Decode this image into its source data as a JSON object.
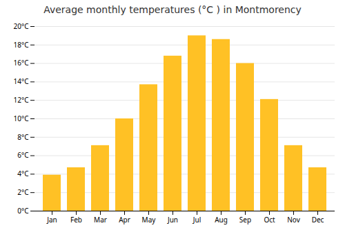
{
  "chart_data": {
    "type": "bar",
    "title": "Average monthly temperatures (°C ) in Montmorency",
    "categories": [
      "Jan",
      "Feb",
      "Mar",
      "Apr",
      "May",
      "Jun",
      "Jul",
      "Aug",
      "Sep",
      "Oct",
      "Nov",
      "Dec"
    ],
    "values": [
      3.9,
      4.7,
      7.1,
      10.0,
      13.7,
      16.8,
      19.0,
      18.6,
      16.0,
      12.1,
      7.1,
      4.7
    ],
    "color": "#FFC125",
    "ylim": [
      0,
      20
    ],
    "yticks": [
      {
        "value": 0,
        "label": "0°C"
      },
      {
        "value": 2,
        "label": "2°C"
      },
      {
        "value": 4,
        "label": "4°C"
      },
      {
        "value": 6,
        "label": "6°C"
      },
      {
        "value": 8,
        "label": "8°C"
      },
      {
        "value": 10,
        "label": "10°C"
      },
      {
        "value": 12,
        "label": "12°C"
      },
      {
        "value": 14,
        "label": "14°C"
      },
      {
        "value": 16,
        "label": "16°C"
      },
      {
        "value": 18,
        "label": "18°C"
      },
      {
        "value": 20,
        "label": "20°C"
      }
    ],
    "grid": true
  }
}
